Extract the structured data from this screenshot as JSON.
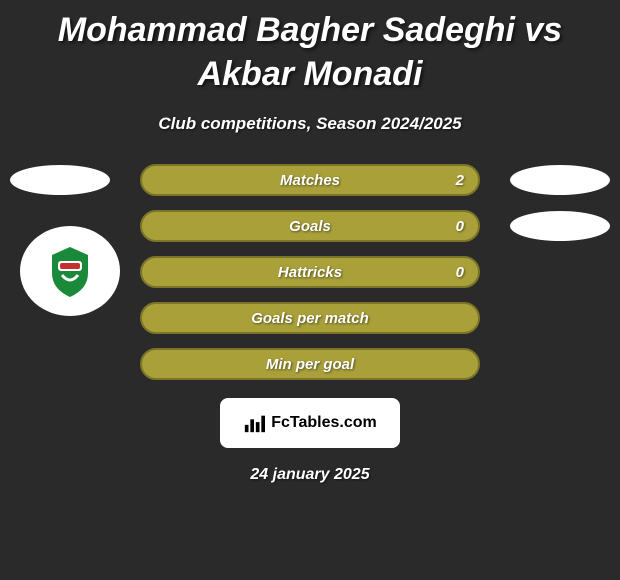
{
  "title": "Mohammad Bagher Sadeghi vs Akbar Monadi",
  "subtitle": "Club competitions, Season 2024/2025",
  "bar_fill": "#a9a03a",
  "bar_border": "#7c7528",
  "ellipse_color": "#ffffff",
  "rows": [
    {
      "label": "Matches",
      "left": "",
      "right": "2",
      "show_left_ellipse": true,
      "show_right_ellipse": true
    },
    {
      "label": "Goals",
      "left": "",
      "right": "0",
      "show_left_ellipse": false,
      "show_right_ellipse": true
    },
    {
      "label": "Hattricks",
      "left": "",
      "right": "0",
      "show_left_ellipse": false,
      "show_right_ellipse": false
    },
    {
      "label": "Goals per match",
      "left": "",
      "right": "",
      "show_left_ellipse": false,
      "show_right_ellipse": false
    },
    {
      "label": "Min per goal",
      "left": "",
      "right": "",
      "show_left_ellipse": false,
      "show_right_ellipse": false
    }
  ],
  "footer_brand": "FcTables.com",
  "date": "24 january 2025",
  "team_logo": {
    "primary": "#1a8a3a",
    "accent": "#c43030"
  }
}
